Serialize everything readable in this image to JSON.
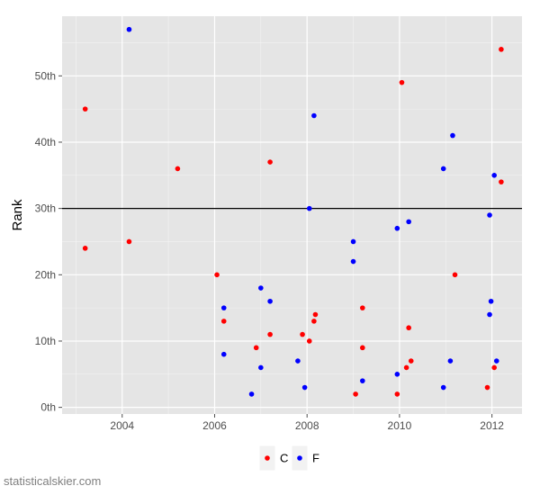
{
  "caption": "statisticalskier.com",
  "chart_data": {
    "type": "scatter",
    "xlabel": "",
    "ylabel": "Rank",
    "xlim": [
      2002.7,
      2012.65
    ],
    "ylim": [
      -1,
      59
    ],
    "x_ticks": [
      2004,
      2006,
      2008,
      2010,
      2012
    ],
    "y_ticks": [
      0,
      10,
      20,
      30,
      40,
      50
    ],
    "y_tick_labels": [
      "0th",
      "10th",
      "20th",
      "30th",
      "40th",
      "50th"
    ],
    "reference_line_y": 30,
    "grid": true,
    "legend_placement": "bottom",
    "colors": {
      "C": "#ff0000",
      "F": "#0000ff",
      "panel": "#e5e5e5",
      "grid": "#ffffff"
    },
    "series": [
      {
        "name": "C",
        "points": [
          [
            2003.2,
            45
          ],
          [
            2003.2,
            24
          ],
          [
            2004.15,
            25
          ],
          [
            2005.2,
            36
          ],
          [
            2006.05,
            20
          ],
          [
            2006.2,
            13
          ],
          [
            2006.9,
            9
          ],
          [
            2007.2,
            11
          ],
          [
            2007.2,
            37
          ],
          [
            2007.9,
            11
          ],
          [
            2008.05,
            10
          ],
          [
            2008.15,
            13
          ],
          [
            2008.18,
            14
          ],
          [
            2009.05,
            2
          ],
          [
            2009.2,
            9
          ],
          [
            2009.2,
            15
          ],
          [
            2009.95,
            2
          ],
          [
            2010.05,
            49
          ],
          [
            2010.15,
            6
          ],
          [
            2010.2,
            12
          ],
          [
            2010.25,
            7
          ],
          [
            2011.2,
            20
          ],
          [
            2011.9,
            3
          ],
          [
            2012.05,
            6
          ],
          [
            2012.2,
            54
          ],
          [
            2012.2,
            34
          ]
        ]
      },
      {
        "name": "F",
        "points": [
          [
            2004.15,
            57
          ],
          [
            2006.2,
            15
          ],
          [
            2006.2,
            8
          ],
          [
            2006.8,
            2
          ],
          [
            2007.0,
            18
          ],
          [
            2007.0,
            6
          ],
          [
            2007.2,
            16
          ],
          [
            2007.8,
            7
          ],
          [
            2007.95,
            3
          ],
          [
            2008.05,
            30
          ],
          [
            2008.15,
            44
          ],
          [
            2009.0,
            25
          ],
          [
            2009.0,
            22
          ],
          [
            2009.2,
            4
          ],
          [
            2009.95,
            5
          ],
          [
            2009.95,
            27
          ],
          [
            2010.2,
            28
          ],
          [
            2010.95,
            36
          ],
          [
            2010.95,
            3
          ],
          [
            2011.1,
            7
          ],
          [
            2011.15,
            41
          ],
          [
            2011.95,
            29
          ],
          [
            2011.95,
            14
          ],
          [
            2011.98,
            16
          ],
          [
            2012.05,
            35
          ],
          [
            2012.1,
            7
          ]
        ]
      }
    ]
  }
}
